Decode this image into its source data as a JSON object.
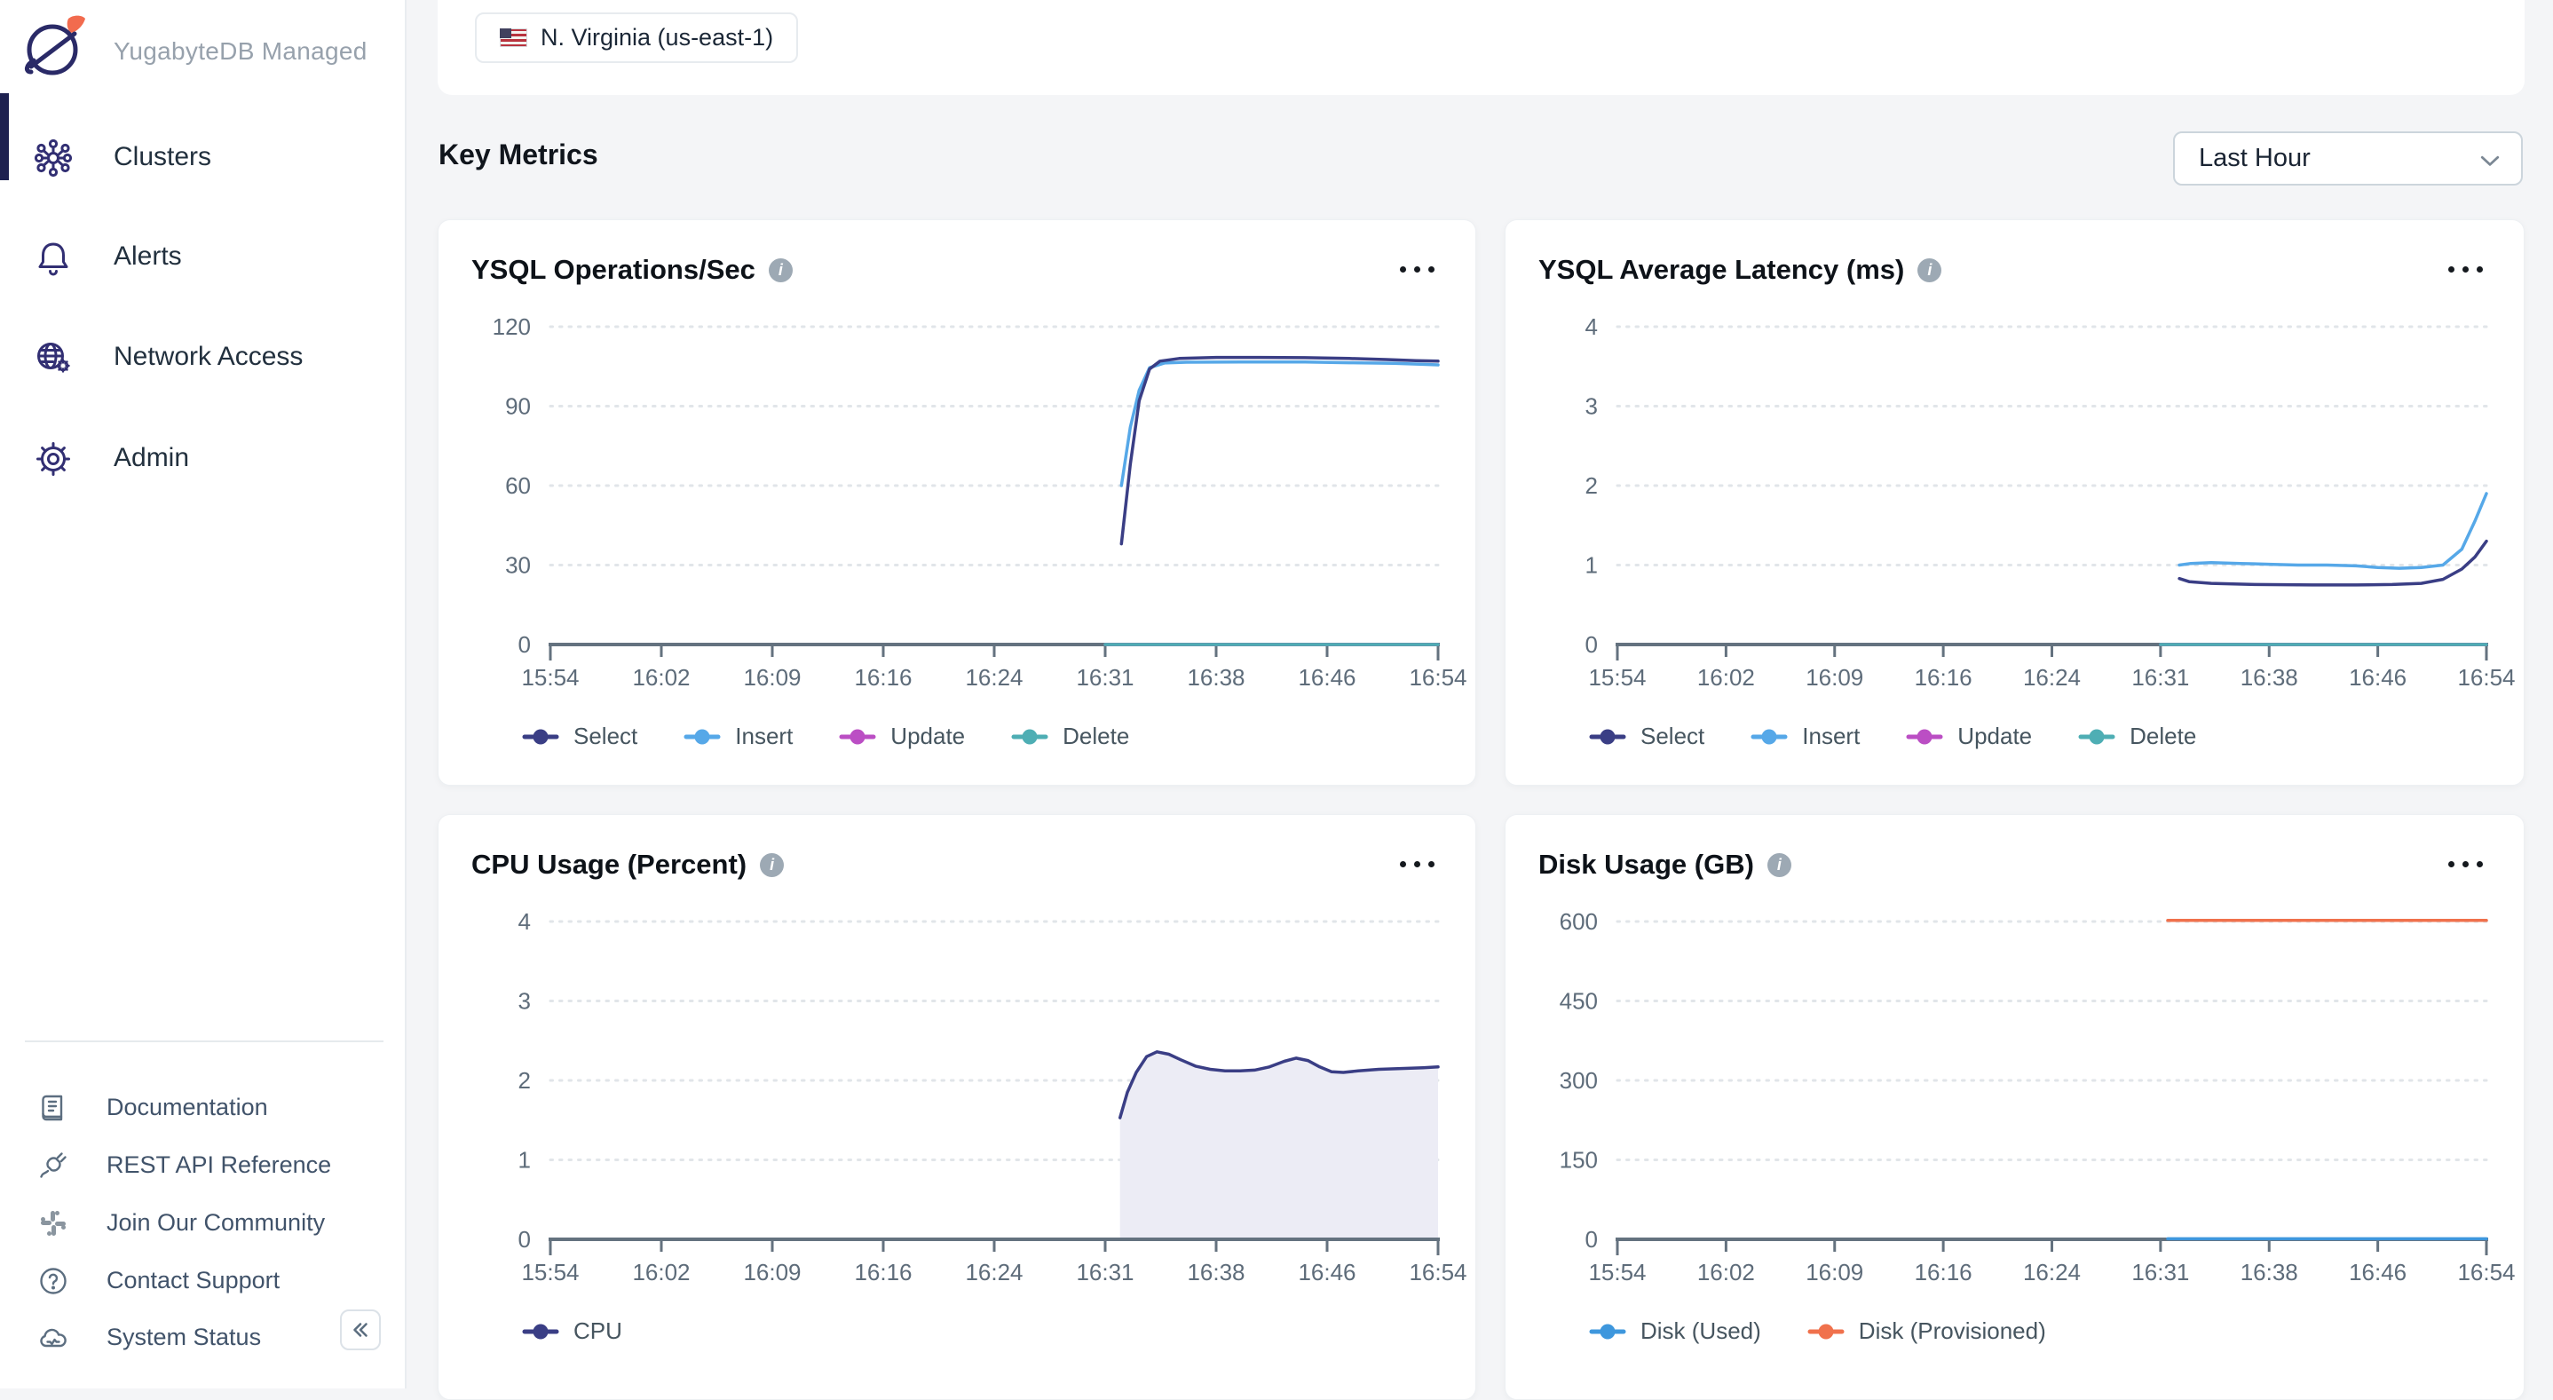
{
  "brand": {
    "name": "YugabyteDB Managed"
  },
  "sidebar": {
    "nav_items": [
      {
        "label": "Clusters",
        "icon": "clusters-icon",
        "active": true
      },
      {
        "label": "Alerts",
        "icon": "bell-icon",
        "active": false
      },
      {
        "label": "Network Access",
        "icon": "globe-gear-icon",
        "active": false
      },
      {
        "label": "Admin",
        "icon": "gear-icon",
        "active": false
      }
    ],
    "footer_items": [
      {
        "label": "Documentation",
        "icon": "book-icon"
      },
      {
        "label": "REST API Reference",
        "icon": "plug-icon"
      },
      {
        "label": "Join Our Community",
        "icon": "slack-icon"
      },
      {
        "label": "Contact Support",
        "icon": "help-circle-icon"
      },
      {
        "label": "System Status",
        "icon": "cloud-icon"
      }
    ]
  },
  "topbar": {
    "region_chip": "N. Virginia (us-east-1)"
  },
  "section": {
    "title": "Key Metrics"
  },
  "time_range": {
    "value": "Last Hour"
  },
  "colors": {
    "accent_navy": "#3A3E85",
    "insert_blue": "#56A8E8",
    "update_magenta": "#BB4EC4",
    "delete_teal": "#4EAEB4",
    "disk_used_blue": "#3E97DD",
    "disk_provisioned_orange": "#F0714C",
    "active_indicator": "#1E2150",
    "axis_gray": "#64727F",
    "grid_gray": "#E1E5E9"
  },
  "chart_data": [
    {
      "type": "line",
      "title": "YSQL Operations/Sec",
      "y_ticks": [
        0,
        30,
        60,
        90,
        120
      ],
      "ymax": 120,
      "x_labels": [
        "15:54",
        "16:02",
        "16:09",
        "16:16",
        "16:24",
        "16:31",
        "16:38",
        "16:46",
        "16:54"
      ],
      "x_span_minutes": 60,
      "legend": [
        {
          "label": "Select",
          "color": "#3A3E85"
        },
        {
          "label": "Insert",
          "color": "#56A8E8"
        },
        {
          "label": "Update",
          "color": "#BB4EC4"
        },
        {
          "label": "Delete",
          "color": "#4EAEB4"
        }
      ],
      "series": [
        {
          "name": "Update",
          "color": "#BB4EC4",
          "points": [
            [
              37.5,
              0
            ],
            [
              60,
              0
            ]
          ]
        },
        {
          "name": "Delete",
          "color": "#4EAEB4",
          "points": [
            [
              37.5,
              0
            ],
            [
              60,
              0
            ]
          ]
        },
        {
          "name": "Insert",
          "color": "#56A8E8",
          "points": [
            [
              38.6,
              60
            ],
            [
              39.2,
              82
            ],
            [
              39.8,
              96
            ],
            [
              40.5,
              104.5
            ],
            [
              41.5,
              106.3
            ],
            [
              43,
              106.6
            ],
            [
              47,
              106.7
            ],
            [
              51,
              106.7
            ],
            [
              54,
              106.4
            ],
            [
              57,
              106.2
            ],
            [
              59,
              105.8
            ],
            [
              60,
              105.6
            ]
          ]
        },
        {
          "name": "Select",
          "color": "#3A3E85",
          "points": [
            [
              38.6,
              38
            ],
            [
              39.2,
              68
            ],
            [
              39.8,
              92
            ],
            [
              40.5,
              104
            ],
            [
              41.2,
              107
            ],
            [
              42.5,
              108
            ],
            [
              45,
              108.4
            ],
            [
              48,
              108.4
            ],
            [
              51,
              108.3
            ],
            [
              54,
              108
            ],
            [
              56.5,
              107.6
            ],
            [
              58.5,
              107.2
            ],
            [
              60,
              107
            ]
          ]
        }
      ]
    },
    {
      "type": "line",
      "title": "YSQL Average Latency (ms)",
      "y_ticks": [
        0,
        1,
        2,
        3,
        4
      ],
      "ymax": 4,
      "x_labels": [
        "15:54",
        "16:02",
        "16:09",
        "16:16",
        "16:24",
        "16:31",
        "16:38",
        "16:46",
        "16:54"
      ],
      "x_span_minutes": 60,
      "legend": [
        {
          "label": "Select",
          "color": "#3A3E85"
        },
        {
          "label": "Insert",
          "color": "#56A8E8"
        },
        {
          "label": "Update",
          "color": "#BB4EC4"
        },
        {
          "label": "Delete",
          "color": "#4EAEB4"
        }
      ],
      "series": [
        {
          "name": "Update",
          "color": "#BB4EC4",
          "points": [
            [
              37.5,
              0
            ],
            [
              60,
              0
            ]
          ]
        },
        {
          "name": "Delete",
          "color": "#4EAEB4",
          "points": [
            [
              37.5,
              0
            ],
            [
              60,
              0
            ]
          ]
        },
        {
          "name": "Insert",
          "color": "#56A8E8",
          "points": [
            [
              38.8,
              1.0
            ],
            [
              39.6,
              1.02
            ],
            [
              41,
              1.03
            ],
            [
              43,
              1.02
            ],
            [
              45,
              1.01
            ],
            [
              47,
              1.0
            ],
            [
              49,
              1.0
            ],
            [
              51,
              0.99
            ],
            [
              52.5,
              0.97
            ],
            [
              54,
              0.96
            ],
            [
              55.5,
              0.97
            ],
            [
              57,
              1.0
            ],
            [
              58.3,
              1.2
            ],
            [
              59.2,
              1.55
            ],
            [
              60,
              1.9
            ]
          ]
        },
        {
          "name": "Select",
          "color": "#3A3E85",
          "points": [
            [
              38.8,
              0.83
            ],
            [
              39.5,
              0.79
            ],
            [
              41,
              0.77
            ],
            [
              44,
              0.755
            ],
            [
              48,
              0.75
            ],
            [
              51,
              0.75
            ],
            [
              53.5,
              0.755
            ],
            [
              55.5,
              0.77
            ],
            [
              57,
              0.82
            ],
            [
              58.3,
              0.95
            ],
            [
              59.2,
              1.1
            ],
            [
              60,
              1.3
            ]
          ]
        }
      ]
    },
    {
      "type": "area",
      "title": "CPU Usage (Percent)",
      "y_ticks": [
        0,
        1,
        2,
        3,
        4
      ],
      "ymax": 4,
      "x_labels": [
        "15:54",
        "16:02",
        "16:09",
        "16:16",
        "16:24",
        "16:31",
        "16:38",
        "16:46",
        "16:54"
      ],
      "x_span_minutes": 60,
      "legend": [
        {
          "label": "CPU",
          "color": "#3A3E85"
        }
      ],
      "series": [
        {
          "name": "CPU",
          "color": "#3A3E85",
          "fill": "#ECECF5",
          "points": [
            [
              38.5,
              1.53
            ],
            [
              39,
              1.85
            ],
            [
              39.6,
              2.1
            ],
            [
              40.3,
              2.3
            ],
            [
              41,
              2.36
            ],
            [
              41.8,
              2.33
            ],
            [
              42.6,
              2.26
            ],
            [
              43.6,
              2.18
            ],
            [
              44.6,
              2.14
            ],
            [
              45.6,
              2.12
            ],
            [
              46.6,
              2.12
            ],
            [
              47.6,
              2.13
            ],
            [
              48.6,
              2.17
            ],
            [
              49.6,
              2.24
            ],
            [
              50.4,
              2.28
            ],
            [
              51.2,
              2.25
            ],
            [
              52,
              2.17
            ],
            [
              52.8,
              2.11
            ],
            [
              53.6,
              2.1
            ],
            [
              54.6,
              2.12
            ],
            [
              56,
              2.14
            ],
            [
              57.5,
              2.15
            ],
            [
              59,
              2.16
            ],
            [
              60,
              2.17
            ]
          ]
        }
      ]
    },
    {
      "type": "line",
      "title": "Disk Usage (GB)",
      "y_ticks": [
        0,
        150,
        300,
        450,
        600
      ],
      "ymax": 600,
      "x_labels": [
        "15:54",
        "16:02",
        "16:09",
        "16:16",
        "16:24",
        "16:31",
        "16:38",
        "16:46",
        "16:54"
      ],
      "x_span_minutes": 60,
      "legend": [
        {
          "label": "Disk (Used)",
          "color": "#3E97DD"
        },
        {
          "label": "Disk (Provisioned)",
          "color": "#F0714C"
        }
      ],
      "series": [
        {
          "name": "Disk (Used)",
          "color": "#3E97DD",
          "points": [
            [
              38,
              1
            ],
            [
              60,
              1
            ]
          ]
        },
        {
          "name": "Disk (Provisioned)",
          "color": "#F0714C",
          "points": [
            [
              38,
              602
            ],
            [
              60,
              602
            ]
          ]
        }
      ]
    }
  ]
}
